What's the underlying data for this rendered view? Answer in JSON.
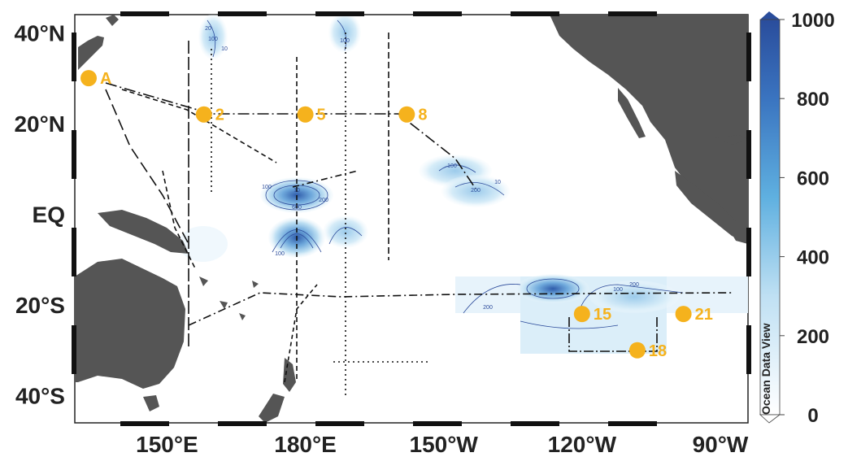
{
  "map": {
    "lat_labels": [
      {
        "text": "40°N",
        "lat": 40
      },
      {
        "text": "20°N",
        "lat": 20
      },
      {
        "text": "EQ",
        "lat": 0
      },
      {
        "text": "20°S",
        "lat": -20
      },
      {
        "text": "40°S",
        "lat": -40
      }
    ],
    "lon_labels": [
      {
        "text": "150°E",
        "lon": 150
      },
      {
        "text": "180°E",
        "lon": 180
      },
      {
        "text": "150°W",
        "lon": 210
      },
      {
        "text": "120°W",
        "lon": 240
      },
      {
        "text": "90°W",
        "lon": 270
      }
    ],
    "stations": [
      {
        "label": "A",
        "lon": 133,
        "lat": 30
      },
      {
        "label": "2",
        "lon": 158,
        "lat": 22
      },
      {
        "label": "5",
        "lon": 180,
        "lat": 22
      },
      {
        "label": "8",
        "lon": 202,
        "lat": 22
      },
      {
        "label": "15",
        "lon": 240,
        "lat": -22
      },
      {
        "label": "21",
        "lon": 262,
        "lat": -22
      },
      {
        "label": "18",
        "lon": 252,
        "lat": -30
      }
    ],
    "colors": {
      "land": "#555555",
      "station": "#f5b21d",
      "contour": "#2b4a9a",
      "cruise_track": "#111111"
    }
  },
  "colorbar": {
    "ticks": [
      "1000",
      "800",
      "600",
      "400",
      "200",
      "0"
    ],
    "title": "Ocean Data View",
    "min": 0,
    "max": 1000,
    "color_low": "#ffffff",
    "color_high": "#2a4d9c"
  },
  "contour_labels": [
    "20",
    "100",
    "10",
    "100",
    "100",
    "10",
    "200",
    "100",
    "10",
    "600",
    "200",
    "100",
    "200",
    "100",
    "200"
  ]
}
